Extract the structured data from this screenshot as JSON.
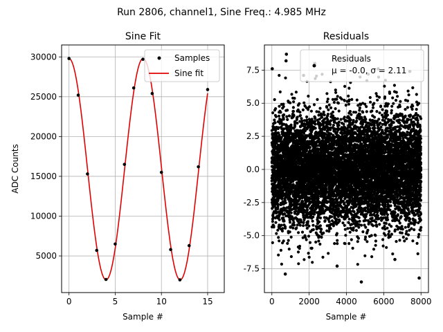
{
  "suptitle": "Run 2806, channel1, Sine Freq.: 4.985 MHz",
  "colors": {
    "fit": "#e00000",
    "points": "#000000",
    "grid": "#b0b0b0"
  },
  "chart_data": [
    {
      "type": "line",
      "title": "Sine Fit",
      "xlabel": "Sample #",
      "ylabel": "ADC Counts",
      "xlim": [
        -0.8,
        16.8
      ],
      "ylim": [
        400,
        31500
      ],
      "xticks": [
        0,
        5,
        10,
        15
      ],
      "yticks": [
        5000,
        10000,
        15000,
        20000,
        25000,
        30000
      ],
      "grid": true,
      "legend_position": "upper-right",
      "series": [
        {
          "name": "Samples",
          "style": "points",
          "x": [
            0,
            1,
            2,
            3,
            4,
            5,
            6,
            7,
            8,
            9,
            10,
            11,
            12,
            13,
            14,
            15
          ],
          "y": [
            29800,
            25200,
            15300,
            5700,
            2050,
            6500,
            16500,
            26100,
            29700,
            25400,
            15500,
            5800,
            2000,
            6300,
            16200,
            25900
          ]
        },
        {
          "name": "Sine fit",
          "style": "line",
          "model": {
            "offset": 15900,
            "amplitude": 13900,
            "period_samples": 8.02,
            "phase_rad": 0.0
          }
        }
      ]
    },
    {
      "type": "scatter",
      "title": "Residuals",
      "xlabel": "Sample #",
      "ylabel": "",
      "xlim": [
        -400,
        8400
      ],
      "ylim": [
        -9.3,
        9.4
      ],
      "xticks": [
        0,
        2000,
        4000,
        6000,
        8000
      ],
      "yticks": [
        -7.5,
        -5.0,
        -2.5,
        0.0,
        2.5,
        5.0,
        7.5
      ],
      "grid": true,
      "legend_position": "upper-right",
      "series": [
        {
          "name": "Residuals",
          "label_line2": "μ = -0.0, σ = 2.11",
          "n_points": 8000,
          "mean": -0.0,
          "std": 2.11,
          "outliers": [
            {
              "x": 20,
              "y": 7.6
            },
            {
              "x": 780,
              "y": 8.7
            },
            {
              "x": 760,
              "y": 8.2
            },
            {
              "x": 1700,
              "y": 7.1
            },
            {
              "x": 2300,
              "y": 8.0
            },
            {
              "x": 3500,
              "y": -7.3
            },
            {
              "x": 4800,
              "y": -8.5
            },
            {
              "x": 7900,
              "y": -8.2
            },
            {
              "x": 720,
              "y": -7.9
            },
            {
              "x": 5700,
              "y": 7.6
            },
            {
              "x": 7400,
              "y": 7.4
            },
            {
              "x": 6600,
              "y": -6.8
            }
          ]
        }
      ]
    }
  ]
}
